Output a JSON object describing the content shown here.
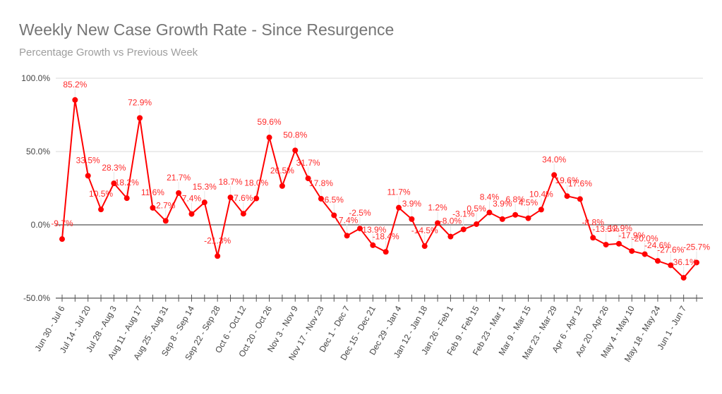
{
  "chart_data": {
    "type": "line",
    "title": "Weekly New Case Growth Rate - Since Resurgence",
    "subtitle": "Percentage Growth vs Previous Week",
    "xlabel": "",
    "ylabel": "",
    "ylim": [
      -50,
      100
    ],
    "yticks": [
      -50,
      0,
      50,
      100
    ],
    "ytick_labels": [
      "-50.0%",
      "0.0%",
      "50.0%",
      "100.0%"
    ],
    "grid": true,
    "legend": "none",
    "series_color": "#ff0000",
    "x_tick_labels": [
      "Jun 30 - Jul 6",
      "Jul 14 - Jul 20",
      "Jul 28 - Aug 3",
      "Aug 11 - Aug 17",
      "Aug 25 - Aug 31",
      "Sep 8 - Sep 14",
      "Sep 22 - Sep 28",
      "Oct 6 - Oct 12",
      "Oct 20 - Oct 26",
      "Nov 3 - Nov 9",
      "Nov 17 - Nov 23",
      "Dec 1 - Dec 7",
      "Dec 15 - Dec 21",
      "Dec 29 - Jan 4",
      "Jan 12 - Jan 18",
      "Jan 26 - Feb 1",
      "Feb 9 - Feb 15",
      "Feb 23 - Mar 1",
      "Mar 9 - Mar 15",
      "Mar 23 - Mar 29",
      "Apr 6 - Apr 12",
      "Aor 20 - Apr 26",
      "May 4 - May 10",
      "May 18 - May 24",
      "Jun 1 - Jun 7"
    ],
    "series": [
      {
        "name": "Weekly growth",
        "values": [
          -9.7,
          85.2,
          33.5,
          10.5,
          28.3,
          18.2,
          72.9,
          11.6,
          2.7,
          21.7,
          7.4,
          15.3,
          -21.3,
          18.7,
          7.6,
          18.0,
          59.6,
          26.5,
          50.8,
          31.7,
          17.8,
          6.5,
          -7.4,
          -2.5,
          -13.9,
          -18.4,
          11.7,
          3.9,
          -14.5,
          1.2,
          -8.0,
          -3.1,
          0.5,
          8.4,
          3.9,
          6.8,
          4.5,
          10.4,
          34.0,
          19.6,
          17.6,
          -8.8,
          -13.5,
          -12.9,
          -17.9,
          -20.0,
          -24.6,
          -27.6,
          -36.1,
          -25.7
        ]
      }
    ]
  }
}
